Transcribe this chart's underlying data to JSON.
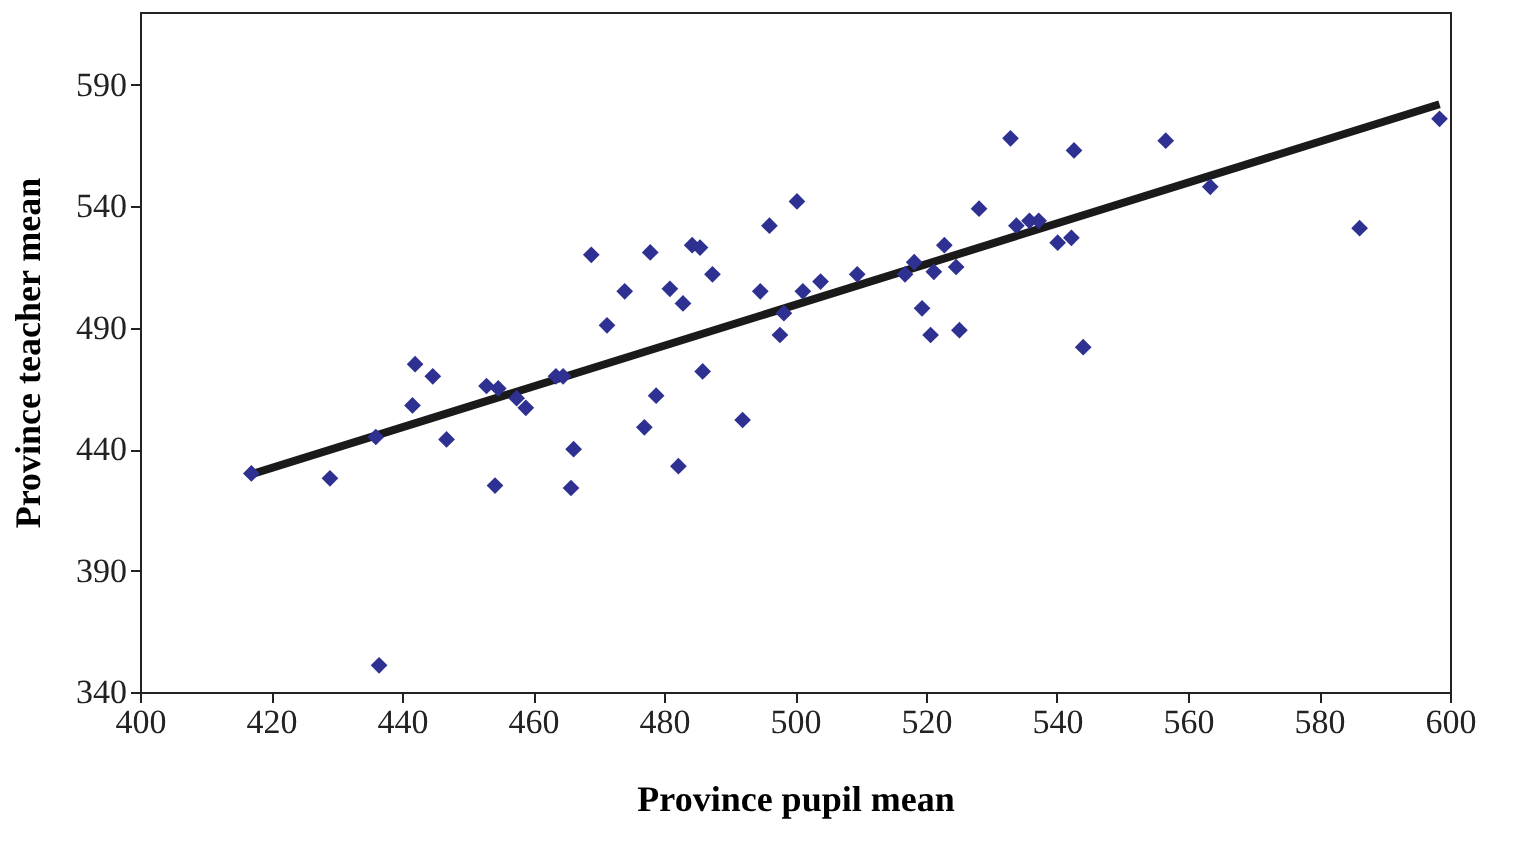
{
  "chart_data": {
    "type": "scatter",
    "xlabel": "Province pupil mean",
    "ylabel": "Province teacher mean",
    "xlim": [
      400,
      600
    ],
    "xticks": [
      400,
      420,
      440,
      460,
      480,
      500,
      520,
      540,
      560,
      580,
      600
    ],
    "ylim": [
      340,
      620
    ],
    "yticks": [
      340,
      390,
      440,
      490,
      540,
      590
    ],
    "grid": false,
    "series": [
      {
        "marker": "diamond",
        "color": "#2e3192",
        "x": [
          417,
          429,
          436,
          436.5,
          441.6,
          442,
          444.7,
          446.8,
          452.9,
          454.2,
          454.7,
          457.5,
          458.9,
          463.5,
          464.6,
          466.2,
          465.8,
          468.9,
          471.3,
          474,
          477,
          477.9,
          478.8,
          480.9,
          482.2,
          482.9,
          484.3,
          485.5,
          485.9,
          487.4,
          492,
          494.7,
          496.1,
          497.7,
          498.3,
          500.3,
          501.2,
          503.9,
          509.5,
          516.8,
          518.2,
          519.4,
          520.7,
          521.2,
          522.8,
          524.6,
          525.1,
          528.1,
          532.9,
          533.8,
          535.8,
          537.2,
          540.1,
          542.2,
          542.6,
          544,
          556.6,
          563.4,
          586.2,
          598.4
        ],
        "values": [
          430,
          428,
          445,
          351,
          458,
          475,
          470,
          444,
          466,
          425,
          465,
          461,
          457,
          470,
          470,
          440,
          424,
          520,
          491,
          505,
          449,
          521,
          462,
          506,
          433,
          500,
          524,
          523,
          472,
          512,
          452,
          505,
          532,
          487,
          496,
          542,
          505,
          509,
          512,
          512,
          517,
          498,
          487,
          513,
          524,
          515,
          489,
          539,
          568,
          532,
          534,
          534,
          525,
          527,
          563,
          482,
          567,
          548,
          531,
          576
        ]
      },
      {
        "type": "line",
        "color": "#1a1a1a",
        "x": [
          417.4,
          598.4
        ],
        "values": [
          430,
          582
        ]
      }
    ]
  }
}
